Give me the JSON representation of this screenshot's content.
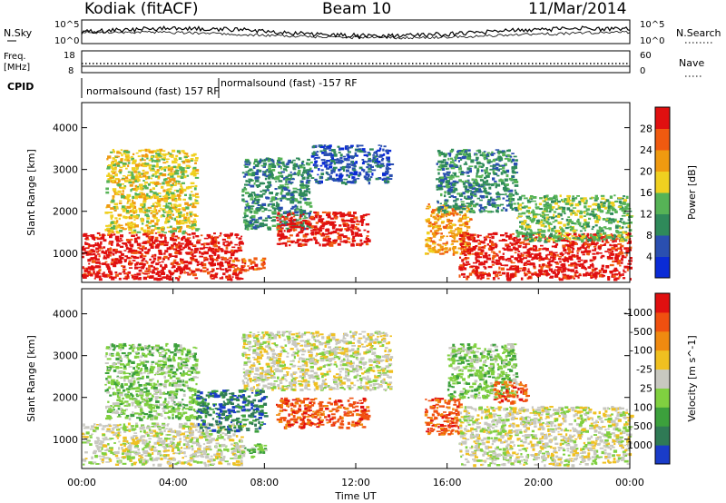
{
  "header": {
    "station": "Kodiak (fitACF)",
    "beam": "Beam 10",
    "date": "11/Mar/2014"
  },
  "panels": {
    "nsky": {
      "label": "N.Sky",
      "tick_top": "10^5",
      "tick_bottom": "10^0"
    },
    "nsearch": {
      "label": "N.Search",
      "tick_top": "10^5",
      "tick_bottom": "10^0"
    },
    "freq": {
      "label_line1": "Freq.",
      "label_line2": "[MHz]",
      "tick_top": "18",
      "tick_bottom": "8"
    },
    "nave": {
      "label": "Nave",
      "tick_top": "60",
      "tick_bottom": "0"
    },
    "cpid": {
      "label": "CPID",
      "segments": [
        {
          "text": "normalsound (fast) 157 RF",
          "start_hour": 0
        },
        {
          "text": "normalsound (fast) -157 RF",
          "start_hour": 6
        }
      ]
    }
  },
  "chart_data": [
    {
      "type": "heatmap",
      "name": "power",
      "ylabel": "Slant Range [km]",
      "ylim": [
        300,
        4600
      ],
      "yticks": [
        1000,
        2000,
        3000,
        4000
      ],
      "colorbar": {
        "label": "Power [dB]",
        "ticks": [
          "4",
          "8",
          "12",
          "16",
          "20",
          "24",
          "28"
        ],
        "colors": [
          "#0a2bd6",
          "#2a4fb0",
          "#2f8a5a",
          "#56b356",
          "#f0d020",
          "#f09a10",
          "#f05a10",
          "#e01010"
        ]
      },
      "regions": [
        {
          "t0": 0,
          "t1": 7,
          "r0": 400,
          "r1": 1500,
          "level": 7
        },
        {
          "t0": 1,
          "t1": 5,
          "r0": 1500,
          "r1": 3500,
          "level": 4
        },
        {
          "t0": 6.5,
          "t1": 8,
          "r0": 600,
          "r1": 900,
          "level": 6
        },
        {
          "t0": 7,
          "t1": 10,
          "r0": 1600,
          "r1": 3300,
          "level": 2
        },
        {
          "t0": 8.5,
          "t1": 12.5,
          "r0": 1200,
          "r1": 2000,
          "level": 7
        },
        {
          "t0": 10,
          "t1": 13.5,
          "r0": 2700,
          "r1": 3600,
          "level": 1
        },
        {
          "t0": 15,
          "t1": 17,
          "r0": 1000,
          "r1": 2200,
          "level": 5
        },
        {
          "t0": 15.5,
          "t1": 19,
          "r0": 2000,
          "r1": 3500,
          "level": 2
        },
        {
          "t0": 16.5,
          "t1": 24,
          "r0": 400,
          "r1": 1500,
          "level": 7
        },
        {
          "t0": 19,
          "t1": 24,
          "r0": 1300,
          "r1": 2400,
          "level": 3
        }
      ]
    },
    {
      "type": "heatmap",
      "name": "velocity",
      "ylabel": "Slant Range [km]",
      "ylim": [
        300,
        4600
      ],
      "yticks": [
        1000,
        2000,
        3000,
        4000
      ],
      "colorbar": {
        "label": "Velocity [m s^-1]",
        "ticks": [
          "1000",
          "500",
          "100",
          "25",
          "-25",
          "-100",
          "-500",
          "-1000"
        ],
        "colors": [
          "#1a3cc8",
          "#2f7a55",
          "#3ca03c",
          "#80d040",
          "#c8c8c0",
          "#f0c020",
          "#f08a10",
          "#f05010",
          "#e01010"
        ]
      },
      "regions": [
        {
          "t0": 0,
          "t1": 7,
          "r0": 400,
          "r1": 1400,
          "level": 4
        },
        {
          "t0": 1,
          "t1": 5,
          "r0": 1500,
          "r1": 3300,
          "level": 3
        },
        {
          "t0": 5,
          "t1": 8,
          "r0": 1200,
          "r1": 2200,
          "level": 1
        },
        {
          "t0": 6.5,
          "t1": 8,
          "r0": 600,
          "r1": 900,
          "level": 3
        },
        {
          "t0": 7,
          "t1": 13.5,
          "r0": 2200,
          "r1": 3600,
          "level": 4
        },
        {
          "t0": 8.5,
          "t1": 12.5,
          "r0": 1300,
          "r1": 2000,
          "level": 7
        },
        {
          "t0": 15,
          "t1": 16.5,
          "r0": 1100,
          "r1": 2000,
          "level": 7
        },
        {
          "t0": 16,
          "t1": 19,
          "r0": 2000,
          "r1": 3300,
          "level": 3
        },
        {
          "t0": 18,
          "t1": 19.5,
          "r0": 1900,
          "r1": 2400,
          "level": 7
        },
        {
          "t0": 16.5,
          "t1": 24,
          "r0": 400,
          "r1": 1800,
          "level": 4
        }
      ]
    }
  ],
  "xaxis": {
    "label": "Time UT",
    "ticks": [
      "00:00",
      "04:00",
      "08:00",
      "12:00",
      "16:00",
      "20:00",
      "00:00"
    ]
  }
}
